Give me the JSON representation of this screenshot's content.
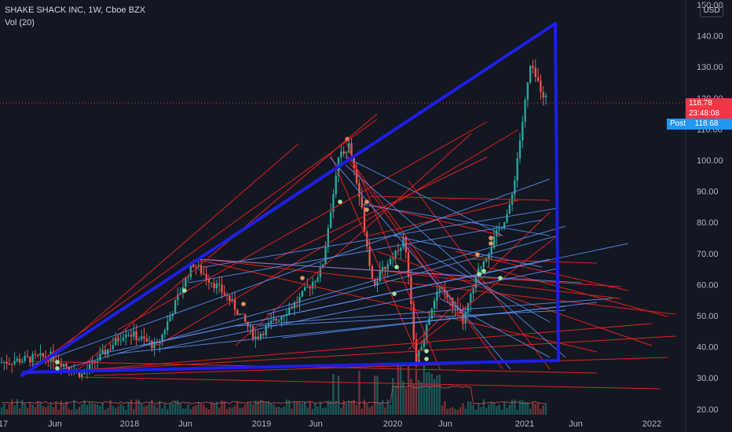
{
  "header": {
    "symbol_line": "SHAKE SHACK INC, 1W, Cboe BZX",
    "volume_label": "Vol (20)"
  },
  "currency_button": "USD",
  "price_axis": {
    "ticks": [
      "150.00",
      "140.00",
      "130.00",
      "120.00",
      "110.00",
      "100.00",
      "90.00",
      "80.00",
      "70.00",
      "60.00",
      "50.00",
      "40.00",
      "30.00",
      "20.00"
    ],
    "values": [
      150,
      140,
      130,
      120,
      110,
      100,
      90,
      80,
      70,
      60,
      50,
      40,
      30,
      20
    ]
  },
  "time_axis": {
    "labels": [
      "17",
      "Jun",
      "2018",
      "Jun",
      "2019",
      "Jun",
      "2020",
      "Jun",
      "2021",
      "Jun",
      "2022"
    ]
  },
  "last_price": {
    "value": "118.78",
    "countdown": "23:48:08",
    "color": "#f23645"
  },
  "post_market": {
    "label": "Post",
    "value": "118.68",
    "color": "#2196f3"
  },
  "colors": {
    "background": "#131722",
    "up_candle": "#26a69a",
    "down_candle": "#ef5350",
    "triangle": "#1e1ee6",
    "red_lines": "#e01e1e",
    "blue_lines": "#5b8def"
  },
  "chart_data": {
    "type": "candlestick",
    "title": "SHAKE SHACK INC, 1W, Cboe BZX",
    "ylim": [
      20,
      150
    ],
    "grid": false,
    "series": [
      {
        "name": "Vol (20)",
        "type": "histogram"
      }
    ],
    "price_path": [
      {
        "date": "2017-03",
        "price": 35
      },
      {
        "date": "2017-06",
        "price": 37
      },
      {
        "date": "2017-08",
        "price": 31
      },
      {
        "date": "2017-12",
        "price": 45
      },
      {
        "date": "2018-02",
        "price": 40
      },
      {
        "date": "2018-06",
        "price": 67
      },
      {
        "date": "2018-09",
        "price": 56
      },
      {
        "date": "2018-11",
        "price": 43
      },
      {
        "date": "2019-02",
        "price": 55
      },
      {
        "date": "2019-05",
        "price": 65
      },
      {
        "date": "2019-07",
        "price": 100
      },
      {
        "date": "2019-08",
        "price": 105
      },
      {
        "date": "2019-10",
        "price": 85
      },
      {
        "date": "2019-11",
        "price": 60
      },
      {
        "date": "2020-01",
        "price": 75
      },
      {
        "date": "2020-03",
        "price": 35
      },
      {
        "date": "2020-05",
        "price": 60
      },
      {
        "date": "2020-07",
        "price": 48
      },
      {
        "date": "2020-09",
        "price": 65
      },
      {
        "date": "2020-12",
        "price": 85
      },
      {
        "date": "2021-01",
        "price": 130
      },
      {
        "date": "2021-02",
        "price": 118.78
      }
    ]
  }
}
